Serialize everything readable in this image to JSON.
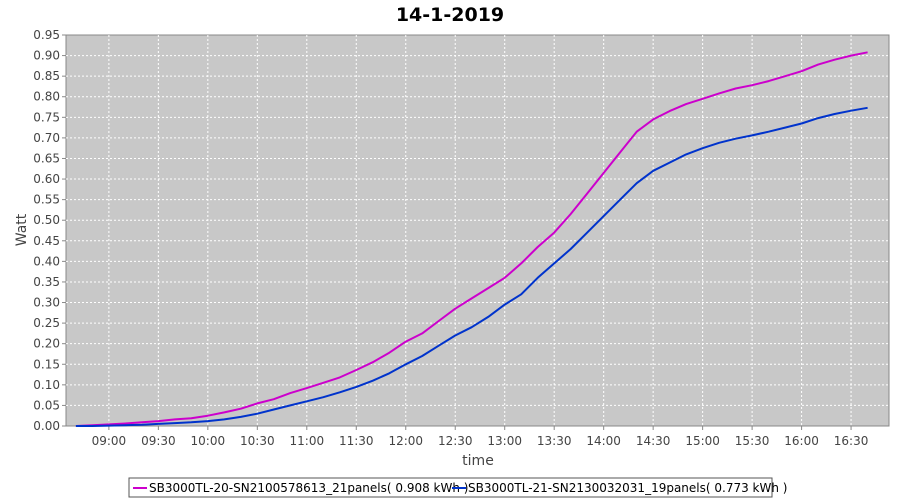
{
  "chart_data": {
    "type": "line",
    "title": "14-1-2019",
    "xlabel": "time",
    "ylabel": "Watt",
    "ylim": [
      0,
      0.95
    ],
    "y_ticks": [
      "0.00",
      "0.05",
      "0.10",
      "0.15",
      "0.20",
      "0.25",
      "0.30",
      "0.35",
      "0.40",
      "0.45",
      "0.50",
      "0.55",
      "0.60",
      "0.65",
      "0.70",
      "0.75",
      "0.80",
      "0.85",
      "0.90",
      "0.95"
    ],
    "x_ticks": [
      "09:00",
      "09:30",
      "10:00",
      "10:30",
      "11:00",
      "11:30",
      "12:00",
      "12:30",
      "13:00",
      "13:30",
      "14:00",
      "14:30",
      "15:00",
      "15:30",
      "16:00",
      "16:30"
    ],
    "xlim": [
      "08:34",
      "16:53"
    ],
    "grid": true,
    "legend_position": "bottom",
    "background": "#c8c8c8",
    "series": [
      {
        "name": "SB3000TL-20-SN2100578613_21panels( 0.908 kWh )",
        "color": "#cc00cc",
        "x": [
          "08:40",
          "08:50",
          "09:00",
          "09:10",
          "09:20",
          "09:30",
          "09:40",
          "09:50",
          "10:00",
          "10:10",
          "10:20",
          "10:30",
          "10:40",
          "10:50",
          "11:00",
          "11:10",
          "11:20",
          "11:30",
          "11:40",
          "11:50",
          "12:00",
          "12:10",
          "12:20",
          "12:30",
          "12:40",
          "12:50",
          "13:00",
          "13:10",
          "13:20",
          "13:30",
          "13:40",
          "13:50",
          "14:00",
          "14:10",
          "14:20",
          "14:30",
          "14:40",
          "14:50",
          "15:00",
          "15:10",
          "15:20",
          "15:30",
          "15:40",
          "15:50",
          "16:00",
          "16:10",
          "16:20",
          "16:30",
          "16:40"
        ],
        "values": [
          0.0,
          0.002,
          0.004,
          0.006,
          0.009,
          0.012,
          0.016,
          0.019,
          0.025,
          0.033,
          0.042,
          0.055,
          0.065,
          0.08,
          0.092,
          0.105,
          0.118,
          0.136,
          0.155,
          0.178,
          0.205,
          0.225,
          0.255,
          0.285,
          0.31,
          0.335,
          0.36,
          0.395,
          0.435,
          0.47,
          0.515,
          0.565,
          0.615,
          0.665,
          0.715,
          0.745,
          0.765,
          0.782,
          0.795,
          0.808,
          0.82,
          0.828,
          0.838,
          0.85,
          0.862,
          0.878,
          0.89,
          0.9,
          0.908
        ]
      },
      {
        "name": "SB3000TL-21-SN2130032031_19panels( 0.773 kWh )",
        "color": "#0033cc",
        "x": [
          "08:40",
          "08:50",
          "09:00",
          "09:10",
          "09:20",
          "09:30",
          "09:40",
          "09:50",
          "10:00",
          "10:10",
          "10:20",
          "10:30",
          "10:40",
          "10:50",
          "11:00",
          "11:10",
          "11:20",
          "11:30",
          "11:40",
          "11:50",
          "12:00",
          "12:10",
          "12:20",
          "12:30",
          "12:40",
          "12:50",
          "13:00",
          "13:10",
          "13:20",
          "13:30",
          "13:40",
          "13:50",
          "14:00",
          "14:10",
          "14:20",
          "14:30",
          "14:40",
          "14:50",
          "15:00",
          "15:10",
          "15:20",
          "15:30",
          "15:40",
          "15:50",
          "16:00",
          "16:10",
          "16:20",
          "16:30",
          "16:40"
        ],
        "values": [
          0.0,
          0.0,
          0.001,
          0.002,
          0.003,
          0.005,
          0.007,
          0.009,
          0.012,
          0.016,
          0.022,
          0.03,
          0.04,
          0.05,
          0.06,
          0.07,
          0.082,
          0.095,
          0.11,
          0.128,
          0.15,
          0.17,
          0.195,
          0.22,
          0.24,
          0.265,
          0.295,
          0.32,
          0.36,
          0.395,
          0.43,
          0.47,
          0.51,
          0.55,
          0.59,
          0.62,
          0.64,
          0.66,
          0.675,
          0.688,
          0.698,
          0.706,
          0.715,
          0.725,
          0.735,
          0.748,
          0.758,
          0.766,
          0.773
        ]
      }
    ]
  }
}
